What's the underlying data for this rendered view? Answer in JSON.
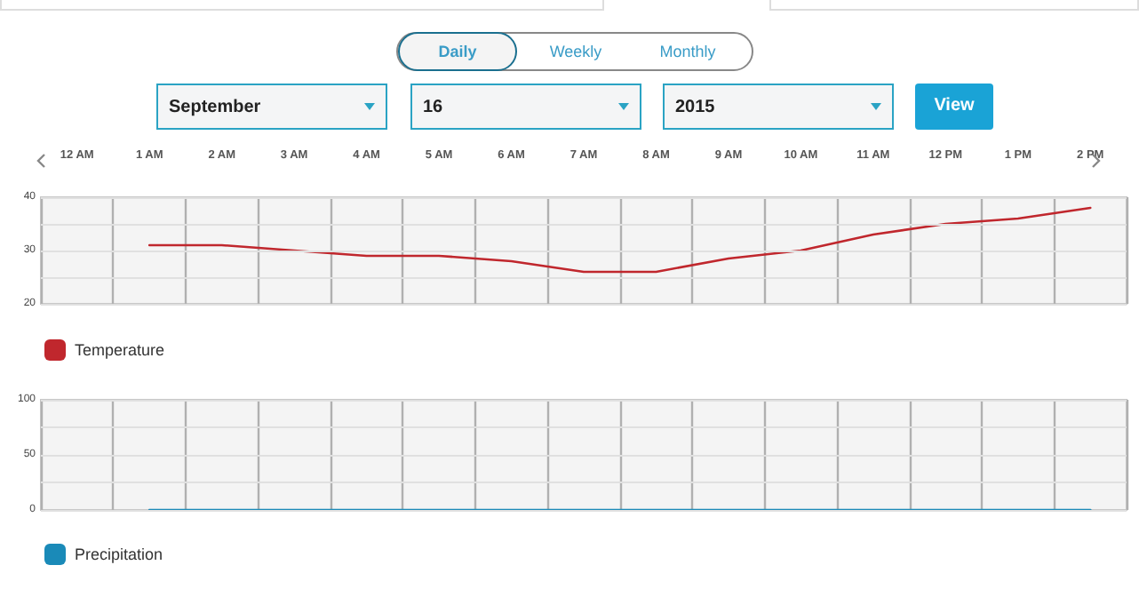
{
  "chart_data": [
    {
      "type": "line",
      "categories": [
        "12 AM",
        "1 AM",
        "2 AM",
        "3 AM",
        "4 AM",
        "5 AM",
        "6 AM",
        "7 AM",
        "8 AM",
        "9 AM",
        "10 AM",
        "11 AM",
        "12 PM",
        "1 PM",
        "2 PM"
      ],
      "series": [
        {
          "name": "Temperature",
          "color": "#c0272d",
          "values": [
            null,
            31,
            31,
            30,
            29,
            29,
            28,
            26,
            26,
            28.5,
            30,
            33,
            35,
            36,
            38
          ]
        }
      ],
      "ylim": [
        20,
        40
      ],
      "yticks": [
        20,
        {
          "value": 25,
          "label": null
        },
        30,
        {
          "value": 35,
          "label": null
        },
        40
      ],
      "grid": true,
      "legend": "bottom left",
      "line_style": "solid",
      "annotations": [
        "Daily",
        "Weekly",
        "Monthly",
        "September",
        "16",
        "2015",
        "View"
      ]
    },
    {
      "type": "line",
      "categories": [
        null,
        null,
        null,
        null,
        null,
        null,
        null,
        null,
        null,
        null,
        null,
        null,
        null,
        null,
        null
      ],
      "series": [
        {
          "name": "Precipitation",
          "color": "#1a8ab8",
          "values": [
            null,
            0,
            0,
            0,
            0,
            0,
            0,
            0,
            0,
            0,
            0,
            0,
            0,
            0,
            0
          ]
        }
      ],
      "ylim": [
        0,
        100
      ],
      "yticks": [
        0,
        {
          "value": 25,
          "label": null
        },
        50,
        {
          "value": 75,
          "label": null
        },
        100
      ],
      "grid": true,
      "legend": "bottom left",
      "line_style": "solid"
    }
  ]
}
